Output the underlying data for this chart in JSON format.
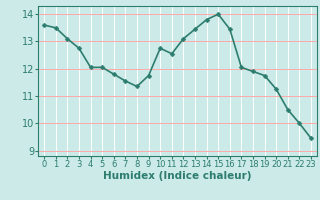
{
  "x": [
    0,
    1,
    2,
    3,
    4,
    5,
    6,
    7,
    8,
    9,
    10,
    11,
    12,
    13,
    14,
    15,
    16,
    17,
    18,
    19,
    20,
    21,
    22,
    23
  ],
  "y": [
    13.6,
    13.5,
    13.1,
    12.75,
    12.05,
    12.05,
    11.8,
    11.55,
    11.35,
    11.75,
    12.75,
    12.55,
    13.1,
    13.45,
    13.8,
    14.0,
    13.45,
    12.05,
    11.9,
    11.75,
    11.25,
    10.5,
    10.0,
    9.45
  ],
  "line_color": "#2d7d6f",
  "marker": "D",
  "marker_size": 2.5,
  "bg_color": "#cceae7",
  "grid_color": "#ffffff",
  "grid_color_h": "#ff9999",
  "xlabel": "Humidex (Indice chaleur)",
  "ylim": [
    8.8,
    14.3
  ],
  "xlim": [
    -0.5,
    23.5
  ],
  "yticks": [
    9,
    10,
    11,
    12,
    13,
    14
  ],
  "xticks": [
    0,
    1,
    2,
    3,
    4,
    5,
    6,
    7,
    8,
    9,
    10,
    11,
    12,
    13,
    14,
    15,
    16,
    17,
    18,
    19,
    20,
    21,
    22,
    23
  ],
  "tick_color": "#2d7d6f",
  "label_color": "#2d7d6f",
  "font_size_xtick": 6,
  "font_size_ytick": 7,
  "font_size_label": 7.5,
  "line_width": 1.2
}
